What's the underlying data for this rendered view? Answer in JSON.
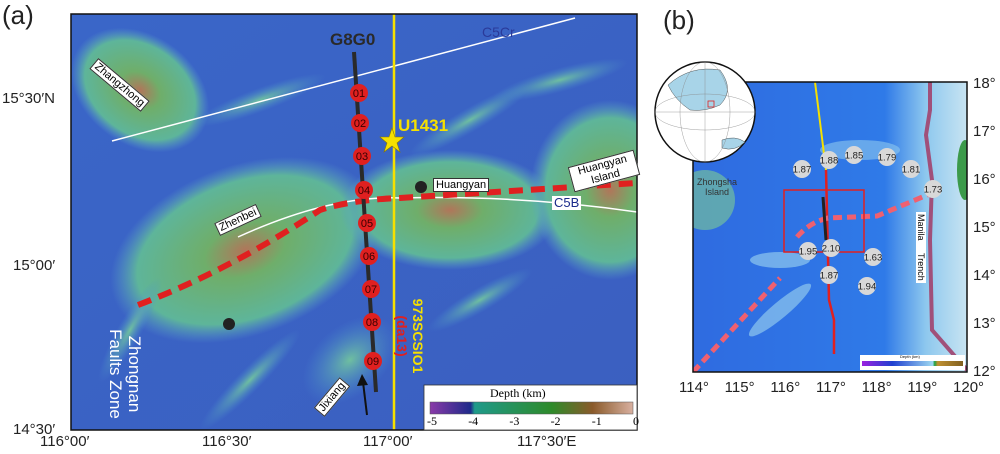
{
  "panel_a": {
    "label": "(a)",
    "x_ticks": [
      "116°00′",
      "116°30′",
      "117°00′",
      "117°30′E"
    ],
    "y_ticks": [
      "15°30′N",
      "15°00′",
      "14°30′"
    ],
    "line_name": "G8G0",
    "stations": [
      "01",
      "02",
      "03",
      "04",
      "05",
      "06",
      "07",
      "08",
      "09"
    ],
    "site": "U1431",
    "places": [
      "Zhangzhong",
      "Zhenbei",
      "Huangyan",
      "Huangyan Island",
      "Jixiang"
    ],
    "magnetic_anomalies": [
      "C5Cr",
      "C5B"
    ],
    "fault_zone": [
      "Zhongnan",
      "Faults Zone"
    ],
    "profile_label": [
      "973SCSIO1",
      "(da13)"
    ],
    "legend": {
      "title": "Depth (km)",
      "ticks": [
        "-5",
        "-4",
        "-3",
        "-2",
        "-1",
        "0"
      ]
    },
    "colors": {
      "station": "#e02020",
      "profile": "#f5e000",
      "ridge": "#e02020",
      "site": "#f5e000"
    }
  },
  "panel_b": {
    "label": "(b)",
    "x_ticks": [
      "114°",
      "115°",
      "116°",
      "117°",
      "118°",
      "119°",
      "120°"
    ],
    "y_ticks": [
      "18°",
      "17°",
      "16°",
      "15°",
      "14°",
      "13°",
      "12°"
    ],
    "places": [
      "Zhongsha Island"
    ],
    "trench": [
      "Manila",
      "Trench"
    ],
    "heat_flow": [
      "1.87",
      "1.88",
      "1.85",
      "1.79",
      "1.81",
      "1.73",
      "1.95",
      "2.10",
      "1.63",
      "1.87",
      "1.94"
    ],
    "legend": {
      "title": "Depth (km)"
    },
    "colors": {
      "trench": "#a0507a",
      "box": "#e02020"
    }
  }
}
